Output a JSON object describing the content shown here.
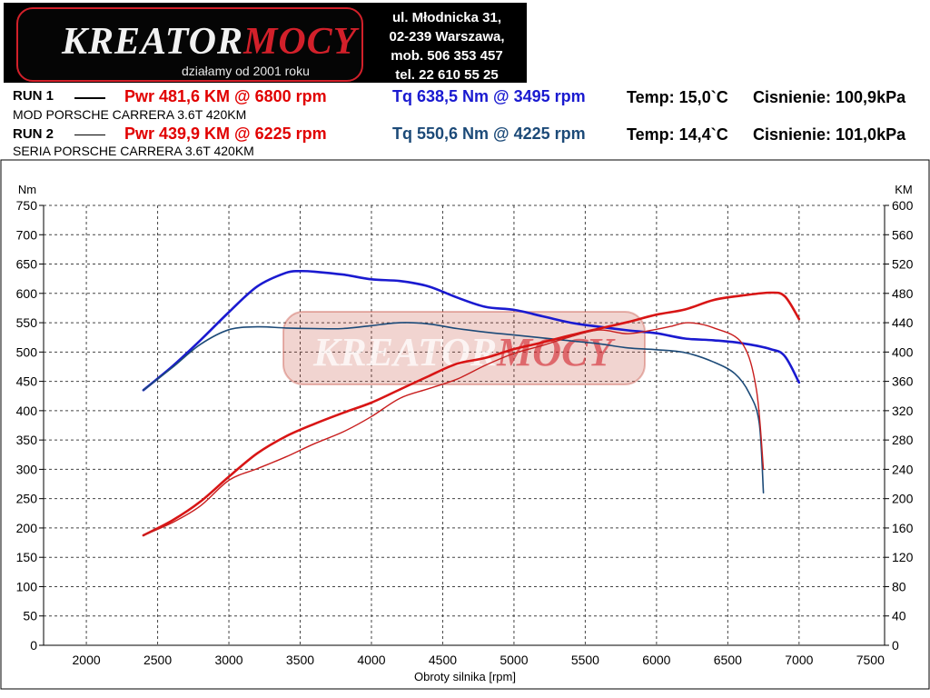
{
  "header": {
    "logo_main": "KREATOR",
    "logo_accent": "MOCY",
    "logo_tagline": "działamy od 2001 roku",
    "address_lines": [
      "ul. Młodnicka 31,",
      "02-239  Warszawa,",
      "mob.  506 353 457",
      "tel.  22 610 55 25"
    ]
  },
  "runs": [
    {
      "label": "RUN 1",
      "name": "MOD PORSCHE CARRERA 3.6T 420KM",
      "pwr": "Pwr  481,6 KM @ 6800 rpm",
      "tq": "Tq 638,5 Nm @ 3495 rpm",
      "temp": "Temp: 15,0`C",
      "pressure": "Cisnienie: 100,9kPa"
    },
    {
      "label": "RUN 2",
      "name": "SERIA PORSCHE CARRERA 3.6T 420KM",
      "pwr": "Pwr  439,9 KM @ 6225 rpm",
      "tq": "Tq 550,6 Nm @ 4225 rpm",
      "temp": "Temp: 14,4`C",
      "pressure": "Cisnienie: 101,0kPa"
    }
  ],
  "chart_data": {
    "type": "line",
    "xlabel": "Obroty silnika [rpm]",
    "ylabel_left": "Nm",
    "ylabel_right": "KM",
    "xlim": [
      1700,
      7600
    ],
    "ylim_left": [
      0,
      750
    ],
    "ylim_right": [
      0,
      600
    ],
    "x_ticks": [
      2000,
      2500,
      3000,
      3500,
      4000,
      4500,
      5000,
      5500,
      6000,
      6500,
      7000,
      7500
    ],
    "y_ticks_left": [
      0,
      50,
      100,
      150,
      200,
      250,
      300,
      350,
      400,
      450,
      500,
      550,
      600,
      650,
      700,
      750
    ],
    "y_ticks_right": [
      0,
      40,
      80,
      120,
      160,
      200,
      240,
      280,
      320,
      360,
      400,
      440,
      480,
      520,
      560,
      600
    ],
    "grid": true,
    "series": [
      {
        "run": "RUN 1",
        "kind": "torque",
        "axis": "left",
        "color": "#1a1ad0",
        "width": 2.6,
        "x": [
          2400,
          2600,
          2800,
          3000,
          3200,
          3400,
          3500,
          3600,
          3800,
          4000,
          4200,
          4400,
          4600,
          4800,
          5000,
          5200,
          5400,
          5600,
          5800,
          6000,
          6200,
          6400,
          6600,
          6800,
          6900,
          7000
        ],
        "y": [
          435,
          475,
          520,
          568,
          612,
          635,
          638,
          637,
          632,
          624,
          621,
          612,
          593,
          577,
          572,
          561,
          550,
          543,
          537,
          532,
          523,
          520,
          515,
          505,
          493,
          448
        ]
      },
      {
        "run": "RUN 2",
        "kind": "torque",
        "axis": "left",
        "color": "#1c4a78",
        "width": 1.6,
        "x": [
          2400,
          2600,
          2800,
          3000,
          3200,
          3400,
          3600,
          3800,
          4000,
          4200,
          4400,
          4600,
          4800,
          5000,
          5200,
          5400,
          5600,
          5800,
          6000,
          6200,
          6400,
          6550,
          6650,
          6720,
          6750
        ],
        "y": [
          435,
          473,
          513,
          538,
          543,
          541,
          540,
          540,
          545,
          550,
          548,
          540,
          534,
          529,
          524,
          519,
          514,
          507,
          504,
          499,
          483,
          463,
          430,
          380,
          260
        ]
      },
      {
        "run": "RUN 1",
        "kind": "power",
        "axis": "right",
        "color": "#d81515",
        "width": 2.6,
        "x": [
          2400,
          2600,
          2800,
          3000,
          3200,
          3400,
          3600,
          3800,
          4000,
          4200,
          4400,
          4600,
          4800,
          5000,
          5200,
          5400,
          5600,
          5800,
          6000,
          6200,
          6400,
          6600,
          6800,
          6900,
          7000
        ],
        "y": [
          150,
          170,
          196,
          230,
          262,
          285,
          302,
          317,
          331,
          349,
          367,
          384,
          392,
          404,
          413,
          423,
          432,
          441,
          451,
          458,
          471,
          477,
          481,
          476,
          445
        ]
      },
      {
        "run": "RUN 2",
        "kind": "power",
        "axis": "right",
        "color": "#c81e1e",
        "width": 1.4,
        "x": [
          2400,
          2600,
          2800,
          3000,
          3200,
          3400,
          3600,
          3800,
          4000,
          4200,
          4400,
          4600,
          4800,
          5000,
          5200,
          5400,
          5600,
          5800,
          6000,
          6100,
          6225,
          6400,
          6600,
          6700,
          6750
        ],
        "y": [
          150,
          167,
          190,
          225,
          241,
          257,
          275,
          291,
          312,
          337,
          350,
          363,
          382,
          398,
          409,
          421,
          430,
          425,
          431,
          435,
          440,
          433,
          412,
          350,
          240
        ]
      }
    ]
  }
}
